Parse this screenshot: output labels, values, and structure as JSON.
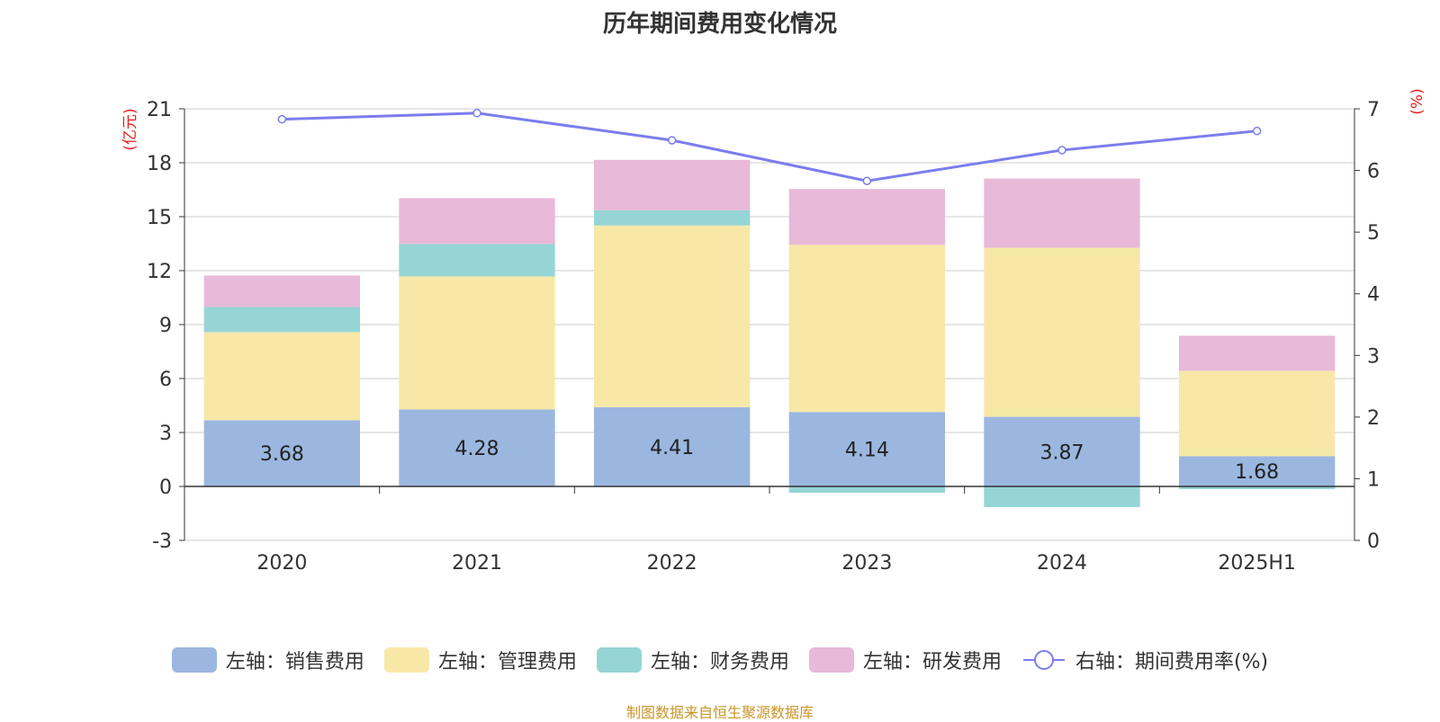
{
  "chart_data": {
    "type": "bar",
    "title": "历年期间费用变化情况",
    "categories": [
      "2020",
      "2021",
      "2022",
      "2023",
      "2024",
      "2025H1"
    ],
    "left_axis": {
      "label": "(亿元)",
      "ylim": [
        -3,
        21
      ],
      "ticks": [
        -3,
        0,
        3,
        6,
        9,
        12,
        15,
        18,
        21
      ]
    },
    "right_axis": {
      "label": "(%)",
      "ylim": [
        0,
        7
      ],
      "ticks": [
        0,
        1,
        2,
        3,
        4,
        5,
        6,
        7
      ]
    },
    "series": [
      {
        "name": "左轴：销售费用",
        "type": "bar",
        "axis": "left",
        "color": "#9bb7e0",
        "values": [
          3.68,
          4.28,
          4.41,
          4.14,
          3.87,
          1.68
        ],
        "data_labels": [
          "3.68",
          "4.28",
          "4.41",
          "4.14",
          "3.87",
          "1.68"
        ]
      },
      {
        "name": "左轴：管理费用",
        "type": "bar",
        "axis": "left",
        "color": "#f7e8a8",
        "values": [
          4.9,
          7.4,
          10.1,
          9.3,
          9.4,
          4.75
        ]
      },
      {
        "name": "左轴：财务费用",
        "type": "bar",
        "axis": "left",
        "color": "#96d5d6",
        "values": [
          1.4,
          1.8,
          0.85,
          -0.35,
          -1.15,
          -0.15
        ]
      },
      {
        "name": "左轴：研发费用",
        "type": "bar",
        "axis": "left",
        "color": "#e8b9d9",
        "values": [
          1.75,
          2.55,
          2.8,
          3.1,
          3.85,
          1.95
        ]
      },
      {
        "name": "右轴：期间费用率(%)",
        "type": "line",
        "axis": "right",
        "color": "#7b7ded",
        "values": [
          6.83,
          6.93,
          6.49,
          5.83,
          6.33,
          6.64
        ]
      }
    ],
    "grid": true,
    "legend_position": "bottom"
  },
  "source_note": "制图数据来自恒生聚源数据库"
}
